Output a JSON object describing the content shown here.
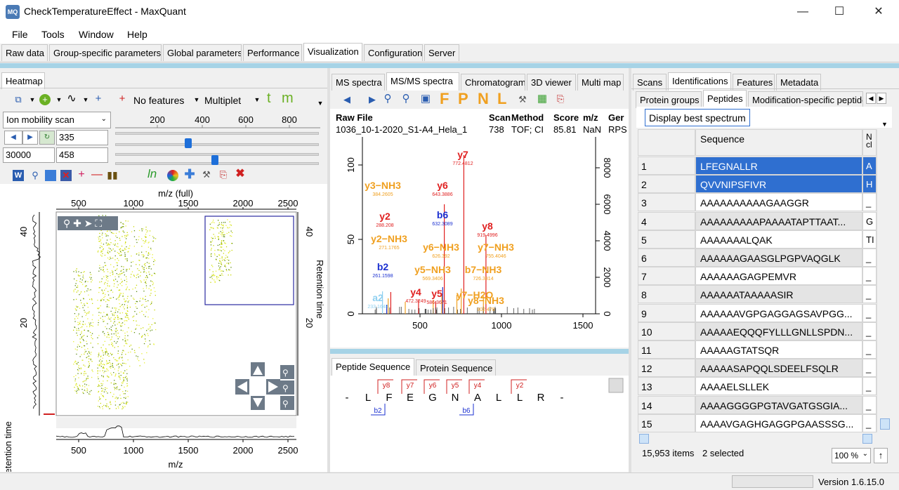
{
  "window": {
    "title": "CheckTemperatureEffect - MaxQuant",
    "icon_text": "MQ"
  },
  "menu": [
    "File",
    "Tools",
    "Window",
    "Help"
  ],
  "main_tabs": [
    "Raw data",
    "Group-specific parameters",
    "Global parameters",
    "Performance",
    "Visualization",
    "Configuration",
    "Server"
  ],
  "heatmap": {
    "tab": "Heatmap",
    "features_label": "No features",
    "multiplet_label": "Multiplet",
    "t_label": "t",
    "m_label": "m",
    "scan_select": "Ion mobility scan",
    "field1": "335",
    "field2": "30000",
    "field3": "458",
    "slider_ticks": [
      "200",
      "400",
      "600",
      "800"
    ],
    "ln_label": "ln",
    "top_axis_title": "m/z (full)",
    "top_axis_ticks": [
      "500",
      "1000",
      "1500",
      "2000",
      "2500"
    ],
    "bottom_axis_ticks": [
      "500",
      "1000",
      "1500",
      "2000",
      "2500"
    ],
    "bottom_axis_title": "m/z",
    "left_axis_title": "Retention time",
    "right_axis_title": "Retention time",
    "left_ticks": [
      "40",
      "20"
    ],
    "right_ticks": [
      "40",
      "20"
    ]
  },
  "spectra": {
    "tabs": [
      "MS spectra",
      "MS/MS spectra",
      "Chromatogram",
      "3D viewer",
      "Multi map"
    ],
    "toolbar_letters": [
      "F",
      "P",
      "N",
      "L"
    ],
    "table_headers": [
      "Raw File",
      "Scan",
      "Method",
      "Score",
      "m/z",
      "Ger"
    ],
    "table_values": [
      "1036_10-1-2020_S1-A4_Hela_1",
      "738",
      "TOF; CI",
      "85.81",
      "NaN",
      "RPS"
    ],
    "left_ticks": [
      "100",
      "50",
      "0"
    ],
    "right_ticks": [
      "8000",
      "6000",
      "4000",
      "2000",
      "0"
    ],
    "x_ticks": [
      "500",
      "1000",
      "1500"
    ],
    "peaks": [
      {
        "ion": "y7",
        "mz": "772.4812",
        "color": "#e02020"
      },
      {
        "ion": "y3−NH3",
        "mz": "384.2605",
        "color": "#f0a020"
      },
      {
        "ion": "y6",
        "mz": "643.3886",
        "color": "#e02020"
      },
      {
        "ion": "y2",
        "mz": "288.208",
        "color": "#e02020"
      },
      {
        "ion": "b6",
        "mz": "632.3089",
        "color": "#1a2fd0"
      },
      {
        "ion": "y8",
        "mz": "919.4996",
        "color": "#e02020"
      },
      {
        "ion": "y2−NH3",
        "mz": "271.1765",
        "color": "#f0a020"
      },
      {
        "ion": "y6−NH3",
        "mz": "626.392",
        "color": "#f0a020"
      },
      {
        "ion": "y7−NH3",
        "mz": "755.4046",
        "color": "#f0a020"
      },
      {
        "ion": "b2",
        "mz": "261.1598",
        "color": "#1a2fd0"
      },
      {
        "ion": "y5−NH3",
        "mz": "569.3406",
        "color": "#f0a020"
      },
      {
        "ion": "b7−NH3",
        "mz": "726.3814",
        "color": "#f0a020"
      },
      {
        "ion": "y4",
        "mz": "472.3249",
        "color": "#e02020"
      },
      {
        "ion": "y5",
        "mz": "586.3671",
        "color": "#e02020"
      },
      {
        "ion": "y7−H2O",
        "mz": "",
        "color": "#f0a020"
      },
      {
        "ion": "y8−NH3",
        "mz": "902.478",
        "color": "#f0a020"
      },
      {
        "ion": "a2",
        "mz": "233.1648",
        "color": "#8fd0f0"
      }
    ]
  },
  "sequence": {
    "tabs": [
      "Peptide Sequence",
      "Protein Sequence"
    ],
    "residues": [
      "-",
      "L",
      "F",
      "E",
      "G",
      "N",
      "A",
      "L",
      "L",
      "R",
      "-"
    ],
    "y_ions": [
      "y8",
      "y7",
      "y6",
      "y5",
      "y4",
      "y2"
    ],
    "b_ions": [
      "b2",
      "b6"
    ]
  },
  "identifications": {
    "tabs": [
      "Scans",
      "Identifications",
      "Features",
      "Metadata"
    ],
    "subtabs": [
      "Protein groups",
      "Peptides",
      "Modification-specific peptides"
    ],
    "display_button": "Display best spectrum",
    "col_sequence": "Sequence",
    "col_next": "N cl",
    "rows": [
      {
        "n": "1",
        "seq": "LFEGNALLR",
        "x": "A",
        "sel": true
      },
      {
        "n": "2",
        "seq": "QVVNIPSFIVR",
        "x": "H",
        "sel": true
      },
      {
        "n": "3",
        "seq": "AAAAAAAAAAGAAGGR",
        "x": "_"
      },
      {
        "n": "4",
        "seq": "AAAAAAAAAPAAAATAPTTAAT...",
        "x": "G"
      },
      {
        "n": "5",
        "seq": "AAAAAAALQAK",
        "x": "TI"
      },
      {
        "n": "6",
        "seq": "AAAAAAGAASGLPGPVAQGLK",
        "x": "_"
      },
      {
        "n": "7",
        "seq": "AAAAAAGAGPEMVR",
        "x": "_"
      },
      {
        "n": "8",
        "seq": "AAAAAATAAAAASIR",
        "x": "_"
      },
      {
        "n": "9",
        "seq": "AAAAAAVGPGAGGAGSAVPGG...",
        "x": "_"
      },
      {
        "n": "10",
        "seq": "AAAAAEQQQFYLLLGNLLSPDN...",
        "x": "_"
      },
      {
        "n": "11",
        "seq": "AAAAAGTATSQR",
        "x": "_"
      },
      {
        "n": "12",
        "seq": "AAAAASAPQQLSDEELFSQLR",
        "x": "_"
      },
      {
        "n": "13",
        "seq": "AAAAELSLLEK",
        "x": "_"
      },
      {
        "n": "14",
        "seq": "AAAAGGGGPGTAVGATGSGIA...",
        "x": "_"
      },
      {
        "n": "15",
        "seq": "AAAAVGAGHGAGGPGAASSSG...",
        "x": "_"
      }
    ],
    "items_count": "15,953 items",
    "selected_count": "2 selected",
    "zoom": "100 %",
    "up_arrow": "↑"
  },
  "status": {
    "version": "Version 1.6.15.0"
  }
}
